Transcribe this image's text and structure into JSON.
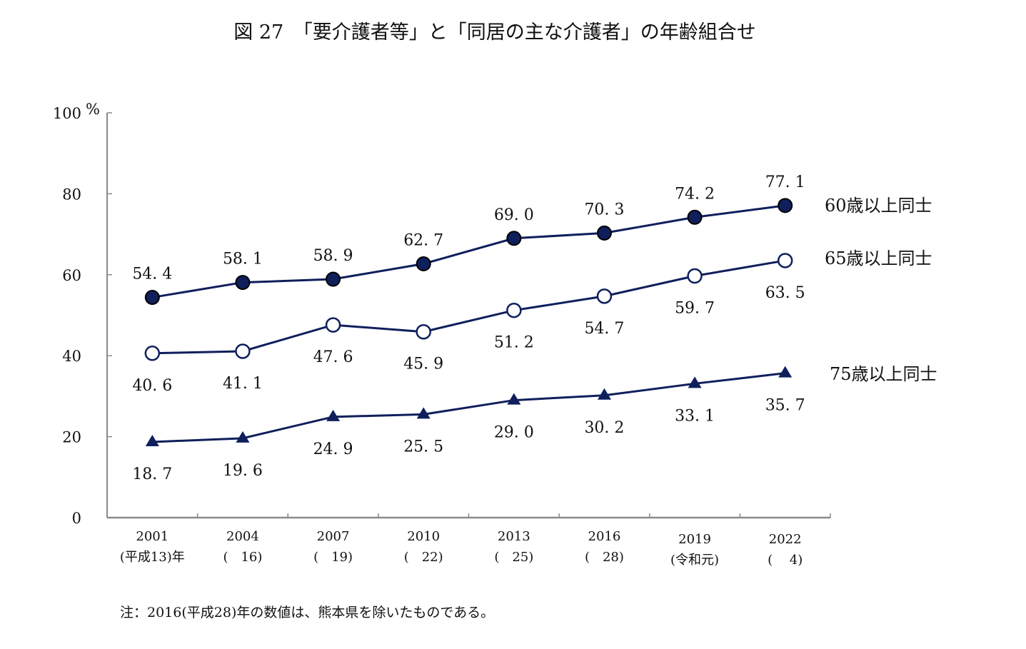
{
  "chart_data": {
    "type": "line",
    "title": "図 27　「要介護者等」と「同居の主な介護者」の年齢組合せ",
    "xlabel": "",
    "ylabel": "%",
    "ylim": [
      0,
      100
    ],
    "yticks": [
      0,
      20,
      40,
      60,
      80,
      100
    ],
    "ytick_labels": [
      "0",
      "20",
      "40",
      "60",
      "80",
      "100"
    ],
    "y_unit": "%",
    "grid": false,
    "categories": [
      {
        "year": "2001",
        "era": "(平成13)年"
      },
      {
        "year": "2004",
        "era": "(　16)"
      },
      {
        "year": "2007",
        "era": "(　19)"
      },
      {
        "year": "2010",
        "era": "(　22)"
      },
      {
        "year": "2013",
        "era": "(　25)"
      },
      {
        "year": "2016",
        "era": "(　28)"
      },
      {
        "year": "2019",
        "era": "(令和元)"
      },
      {
        "year": "2022",
        "era": "(　 4)"
      }
    ],
    "series": [
      {
        "name": "60歳以上同士",
        "marker": "filled-circle",
        "label_position": "above",
        "values": [
          54.4,
          58.1,
          58.9,
          62.7,
          69.0,
          70.3,
          74.2,
          77.1
        ],
        "labels": [
          "54. 4",
          "58. 1",
          "58. 9",
          "62. 7",
          "69. 0",
          "70. 3",
          "74. 2",
          "77. 1"
        ]
      },
      {
        "name": "65歳以上同士",
        "marker": "open-circle",
        "label_position": "below",
        "values": [
          40.6,
          41.1,
          47.6,
          45.9,
          51.2,
          54.7,
          59.7,
          63.5
        ],
        "labels": [
          "40. 6",
          "41. 1",
          "47. 6",
          "45. 9",
          "51. 2",
          "54. 7",
          "59. 7",
          "63. 5"
        ]
      },
      {
        "name": "75歳以上同士",
        "marker": "filled-triangle",
        "label_position": "below",
        "values": [
          18.7,
          19.6,
          24.9,
          25.5,
          29.0,
          30.2,
          33.1,
          35.7
        ],
        "labels": [
          "18. 7",
          "19. 6",
          "24. 9",
          "25. 5",
          "29. 0",
          "30. 2",
          "33. 1",
          "35. 7"
        ]
      }
    ],
    "legend": "right-end-labels",
    "note": "注：2016(平成28)年の数値は、熊本県を除いたものである。"
  },
  "colors": {
    "series_line": "#0f1f5c",
    "marker_fill": "#0f1f5c",
    "marker_open_fill": "#ffffff",
    "axis": "#8a8a8a",
    "text": "#111111"
  }
}
